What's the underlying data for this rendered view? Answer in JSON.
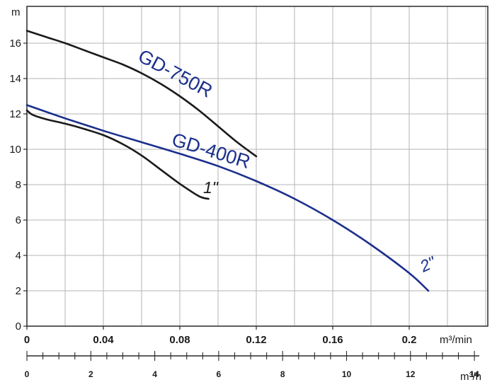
{
  "chart_data": {
    "type": "line",
    "title": "",
    "ylabel": "m",
    "xlabel": "m³/min",
    "xlabel_secondary": "m³/h",
    "xlim": [
      0,
      0.2
    ],
    "ylim": [
      0,
      18
    ],
    "x_ticks": [
      "0",
      "0.04",
      "0.08",
      "0.12",
      "0.16",
      "0.2"
    ],
    "y_ticks": [
      "0",
      "2",
      "4",
      "6",
      "8",
      "10",
      "12",
      "14",
      "16"
    ],
    "x2_ticks": [
      "0",
      "2",
      "4",
      "6",
      "8",
      "10",
      "12",
      "14"
    ],
    "grid": true,
    "colors": {
      "black_curve": "#1a1a1a",
      "blue_curve": "#1b2f8c",
      "grid": "#b5b5b5"
    },
    "series": [
      {
        "name": "GD-750R",
        "color": "#1a1a1a",
        "x": [
          0,
          0.01,
          0.02,
          0.03,
          0.04,
          0.05,
          0.06,
          0.07,
          0.08,
          0.09,
          0.1,
          0.11,
          0.12
        ],
        "y": [
          16.7,
          16.35,
          16.0,
          15.6,
          15.2,
          14.8,
          14.3,
          13.7,
          13.0,
          12.2,
          11.3,
          10.4,
          9.6
        ]
      },
      {
        "name": "GD-400R",
        "color": "#1b2f8c",
        "x": [
          0,
          0.02,
          0.04,
          0.06,
          0.08,
          0.1,
          0.12,
          0.14,
          0.16,
          0.18,
          0.2,
          0.21
        ],
        "y": [
          12.5,
          11.75,
          11.05,
          10.4,
          9.75,
          9.05,
          8.2,
          7.2,
          6.0,
          4.6,
          3.0,
          2.0
        ]
      },
      {
        "name": "1\"",
        "color": "#1a1a1a",
        "x": [
          0,
          0.003,
          0.01,
          0.02,
          0.03,
          0.04,
          0.05,
          0.06,
          0.07,
          0.08,
          0.09,
          0.095
        ],
        "y": [
          12.2,
          11.95,
          11.7,
          11.45,
          11.15,
          10.8,
          10.3,
          9.65,
          8.85,
          8.05,
          7.35,
          7.2
        ]
      }
    ],
    "annotations": [
      {
        "text": "GD-750R",
        "color": "#1b2f8c"
      },
      {
        "text": "GD-400R",
        "color": "#1b2f8c"
      },
      {
        "text": "1\"",
        "color": "#1a1a1a"
      },
      {
        "text": "2\"",
        "color": "#1b2f8c"
      }
    ]
  }
}
